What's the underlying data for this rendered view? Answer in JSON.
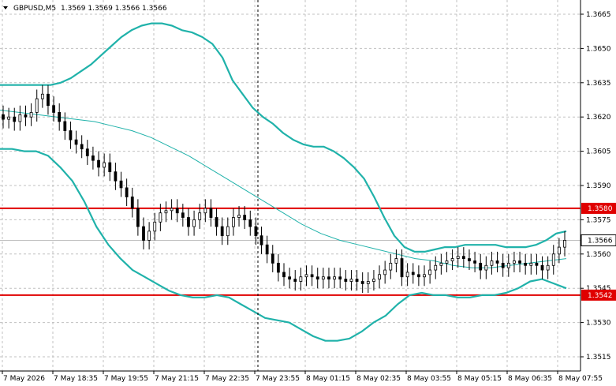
{
  "header": {
    "symbol_label": "GBPUSD,M5",
    "ohlc": "1.3569 1.3569 1.3566 1.3566"
  },
  "colors": {
    "bollinger": "#20b2aa",
    "ma": "#20b2aa",
    "hline": "#e00000",
    "price_box": "#ffffff",
    "candle": "#000000",
    "grid": "#c0c0c0"
  },
  "chart_data": {
    "type": "candlestick",
    "symbol": "GBPUSD",
    "timeframe": "M5",
    "ylim": [
      1.3515,
      1.3668
    ],
    "y_ticks": [
      "1.3665",
      "1.3650",
      "1.3635",
      "1.3620",
      "1.3605",
      "1.3590",
      "1.3575",
      "1.3560",
      "1.3545",
      "1.3530",
      "1.3515"
    ],
    "x_ticks": [
      "7 May 2026",
      "7 May 18:35",
      "7 May 19:55",
      "7 May 21:15",
      "7 May 22:35",
      "7 May 23:55",
      "8 May 01:15",
      "8 May 02:35",
      "8 May 03:55",
      "8 May 05:15",
      "8 May 06:35",
      "8 May 07:55"
    ],
    "current_price": "1.3566",
    "horizontal_lines": [
      {
        "value": 1.358,
        "label": "1.3580"
      },
      {
        "value": 1.3542,
        "label": "1.3542"
      }
    ],
    "grid": true,
    "close": [
      1.3619,
      1.362,
      1.3618,
      1.3621,
      1.362,
      1.3622,
      1.3628,
      1.363,
      1.3625,
      1.3622,
      1.3618,
      1.3614,
      1.361,
      1.3608,
      1.3606,
      1.3603,
      1.3601,
      1.3598,
      1.36,
      1.3596,
      1.3592,
      1.3589,
      1.3585,
      1.358,
      1.3572,
      1.3566,
      1.357,
      1.3574,
      1.3578,
      1.3579,
      1.358,
      1.3578,
      1.3576,
      1.3572,
      1.3575,
      1.3578,
      1.358,
      1.3576,
      1.3572,
      1.3568,
      1.3572,
      1.3576,
      1.3577,
      1.3575,
      1.3572,
      1.3568,
      1.3564,
      1.356,
      1.3556,
      1.3552,
      1.355,
      1.3549,
      1.3548,
      1.355,
      1.3551,
      1.355,
      1.3549,
      1.355,
      1.3549,
      1.355,
      1.3549,
      1.3548,
      1.3549,
      1.3548,
      1.3547,
      1.3548,
      1.3549,
      1.3551,
      1.3553,
      1.3556,
      1.3558,
      1.355,
      1.3552,
      1.3551,
      1.355,
      1.3551,
      1.3553,
      1.3555,
      1.3556,
      1.3557,
      1.3558,
      1.3559,
      1.3558,
      1.3557,
      1.3556,
      1.3553,
      1.3555,
      1.3557,
      1.3556,
      1.3554,
      1.3556,
      1.3557,
      1.3556,
      1.3555,
      1.3556,
      1.3555,
      1.3553,
      1.3555,
      1.356,
      1.3563,
      1.3566
    ],
    "bb_upper": [
      1.3634,
      1.3634,
      1.3634,
      1.3634,
      1.3634,
      1.3634,
      1.3635,
      1.3637,
      1.364,
      1.3643,
      1.3647,
      1.3651,
      1.3655,
      1.3658,
      1.366,
      1.3661,
      1.3661,
      1.366,
      1.3658,
      1.3657,
      1.3655,
      1.3652,
      1.3646,
      1.3636,
      1.363,
      1.3624,
      1.362,
      1.3617,
      1.3613,
      1.361,
      1.3608,
      1.3607,
      1.3607,
      1.3605,
      1.3602,
      1.3598,
      1.3593,
      1.3585,
      1.3576,
      1.3568,
      1.3563,
      1.3561,
      1.3561,
      1.3562,
      1.3563,
      1.3563,
      1.3564,
      1.3564,
      1.3564,
      1.3564,
      1.3563,
      1.3563,
      1.3563,
      1.3564,
      1.3566,
      1.3569,
      1.357
    ],
    "bb_middle": [
      1.3623,
      1.3622,
      1.3621,
      1.362,
      1.3619,
      1.3618,
      1.3616,
      1.3614,
      1.3611,
      1.3607,
      1.3603,
      1.3598,
      1.3593,
      1.3588,
      1.3583,
      1.3578,
      1.3573,
      1.3569,
      1.3566,
      1.3564,
      1.3562,
      1.356,
      1.3558,
      1.3557,
      1.3555,
      1.3554,
      1.3554,
      1.3555,
      1.3556,
      1.3557,
      1.3558
    ],
    "bb_lower": [
      1.3606,
      1.3606,
      1.3605,
      1.3605,
      1.3603,
      1.3598,
      1.3592,
      1.3583,
      1.3572,
      1.3564,
      1.3558,
      1.3553,
      1.355,
      1.3547,
      1.3544,
      1.3542,
      1.3541,
      1.3541,
      1.3542,
      1.3541,
      1.3538,
      1.3535,
      1.3532,
      1.3531,
      1.353,
      1.3527,
      1.3524,
      1.3522,
      1.3522,
      1.3523,
      1.3526,
      1.353,
      1.3533,
      1.3538,
      1.3542,
      1.3543,
      1.3542,
      1.3542,
      1.3541,
      1.3541,
      1.3542,
      1.3542,
      1.3543,
      1.3545,
      1.3548,
      1.3549,
      1.3547,
      1.3545
    ]
  }
}
